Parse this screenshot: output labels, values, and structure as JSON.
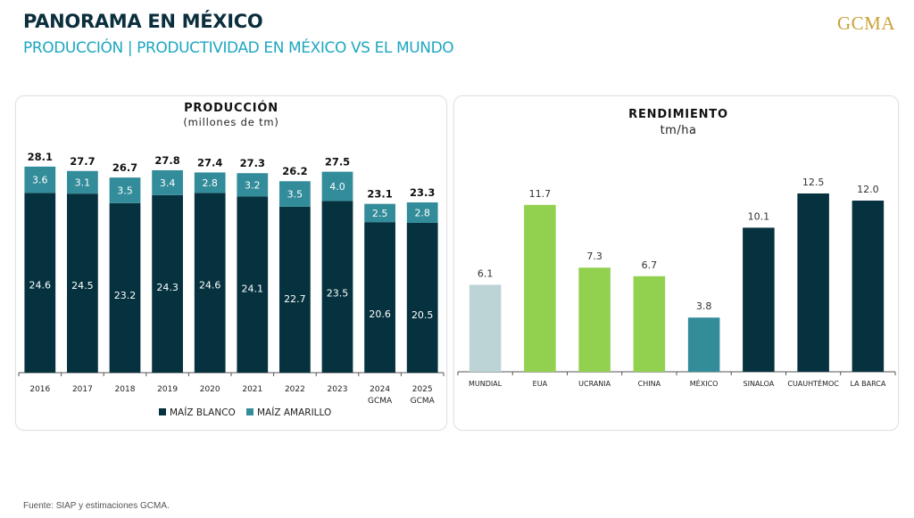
{
  "header": {
    "title": "PANORAMA EN MÉXICO",
    "subtitle": "PRODUCCIÓN | PRODUCTIVIDAD EN MÉXICO VS EL MUNDO",
    "logo": "GCMA"
  },
  "footer": {
    "source": "Fuente: SIAP y estimaciones GCMA."
  },
  "colors": {
    "blanco": "#06323f",
    "amarillo": "#338c9a",
    "mundial": "#bdd4d6",
    "green": "#92d050",
    "mexico": "#338c9a",
    "regional": "#06323f",
    "title": "#0b2f3d",
    "subtitle": "#1ea7c0",
    "logo": "#c9a23a"
  },
  "chart_data": [
    {
      "type": "bar",
      "stacked": true,
      "title": "PRODUCCIÓN",
      "subtitle": "(millones de tm)",
      "categories": [
        [
          "2016"
        ],
        [
          "2017"
        ],
        [
          "2018"
        ],
        [
          "2019"
        ],
        [
          "2020"
        ],
        [
          "2021"
        ],
        [
          "2022"
        ],
        [
          "2023"
        ],
        [
          "2024",
          "GCMA"
        ],
        [
          "2025",
          "GCMA"
        ]
      ],
      "series": [
        {
          "name": "MAÍZ BLANCO",
          "values": [
            24.6,
            24.5,
            23.2,
            24.3,
            24.6,
            24.1,
            22.7,
            23.5,
            20.6,
            20.5
          ]
        },
        {
          "name": "MAÍZ AMARILLO",
          "values": [
            3.6,
            3.1,
            3.5,
            3.4,
            2.8,
            3.2,
            3.5,
            4.0,
            2.5,
            2.8
          ]
        }
      ],
      "totals": [
        28.1,
        27.7,
        26.7,
        27.8,
        27.4,
        27.3,
        26.2,
        27.5,
        23.1,
        23.3
      ],
      "ylim": [
        0,
        30
      ],
      "legend": "bottom",
      "grid": false
    },
    {
      "type": "bar",
      "title": "RENDIMIENTO",
      "subtitle": "tm/ha",
      "categories": [
        "MUNDIAL",
        "EUA",
        "UCRANIA",
        "CHINA",
        "MÉXICO",
        "SINALOA",
        "CUAUHTÉMOC",
        "LA BARCA"
      ],
      "values": [
        6.1,
        11.7,
        7.3,
        6.7,
        3.8,
        10.1,
        12.5,
        12.0
      ],
      "bar_colors": [
        "mundial",
        "green",
        "green",
        "green",
        "mexico",
        "regional",
        "regional",
        "regional"
      ],
      "ylim": [
        0,
        14
      ],
      "legend": "none",
      "grid": false
    }
  ]
}
